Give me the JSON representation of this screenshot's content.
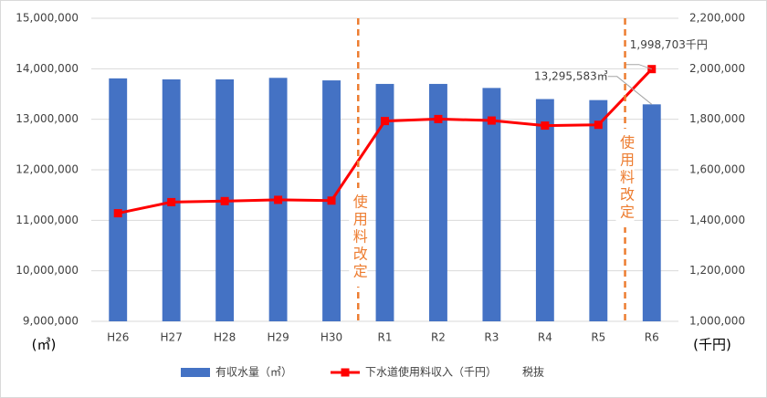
{
  "chart_data": {
    "type": "bar-line",
    "categories": [
      "H26",
      "H27",
      "H28",
      "H29",
      "H30",
      "R1",
      "R2",
      "R3",
      "R4",
      "R5",
      "R6"
    ],
    "series": [
      {
        "name": "有収水量（㎥）",
        "color": "#4472c4",
        "type": "bar",
        "axis": "y",
        "values": [
          13810000,
          13790000,
          13790000,
          13820000,
          13770000,
          13700000,
          13700000,
          13620000,
          13400000,
          13380000,
          13295583
        ],
        "value_labels": [
          null,
          null,
          null,
          null,
          null,
          null,
          null,
          null,
          null,
          null,
          "13,295,583㎥"
        ]
      },
      {
        "name": "下水道使用料収入（千円）",
        "color": "#ff0000",
        "type": "line",
        "axis": "y2",
        "values": [
          1428000,
          1472000,
          1476000,
          1481000,
          1478000,
          1793000,
          1801000,
          1795000,
          1775000,
          1778000,
          1998703
        ],
        "value_labels": [
          null,
          null,
          null,
          null,
          null,
          null,
          null,
          null,
          null,
          null,
          "1,998,703千円"
        ]
      }
    ],
    "ylim": [
      9000000,
      15000000
    ],
    "yticks": [
      {
        "value": 9000000,
        "label": "9,000,000"
      },
      {
        "value": 10000000,
        "label": "10,000,000"
      },
      {
        "value": 11000000,
        "label": "11,000,000"
      },
      {
        "value": 12000000,
        "label": "12,000,000"
      },
      {
        "value": 13000000,
        "label": "13,000,000"
      },
      {
        "value": 14000000,
        "label": "14,000,000"
      },
      {
        "value": 15000000,
        "label": "15,000,000"
      }
    ],
    "y2lim": [
      1000000,
      2200000
    ],
    "y2ticks": [
      {
        "value": 1000000,
        "label": "1,000,000"
      },
      {
        "value": 1200000,
        "label": "1,200,000"
      },
      {
        "value": 1400000,
        "label": "1,400,000"
      },
      {
        "value": 1600000,
        "label": "1,600,000"
      },
      {
        "value": 1800000,
        "label": "1,800,000"
      },
      {
        "value": 2000000,
        "label": "2,000,000"
      },
      {
        "value": 2200000,
        "label": "2,200,000"
      }
    ],
    "y_unit": "(㎥)",
    "y2_unit": "(千円)",
    "annotations": [
      {
        "label": "使用料改定",
        "between": [
          "H30",
          "R1"
        ]
      },
      {
        "label": "使用料改定",
        "between": [
          "R5",
          "R6"
        ]
      }
    ],
    "annotation_color": "#ed7d31",
    "note": "税抜",
    "grid": true,
    "legend": "bottom"
  }
}
